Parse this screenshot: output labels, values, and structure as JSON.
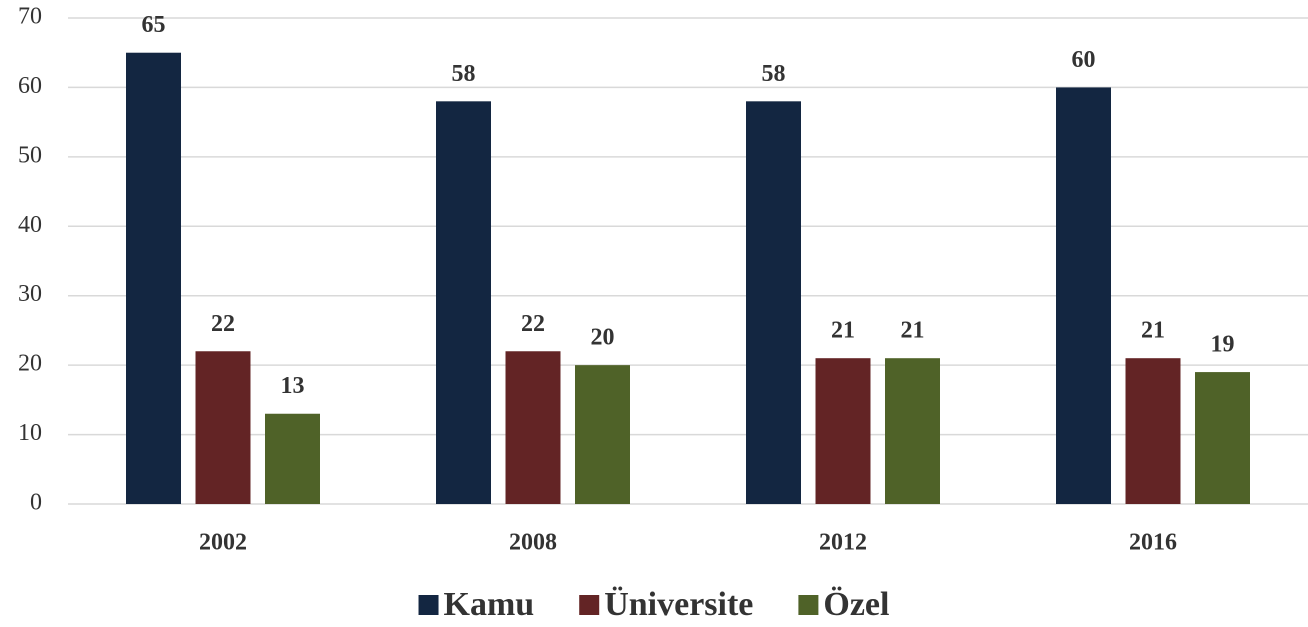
{
  "chart_data": {
    "type": "bar",
    "categories": [
      "2002",
      "2008",
      "2012",
      "2016"
    ],
    "series": [
      {
        "name": "Kamu",
        "color": "#132641",
        "values": [
          65,
          58,
          58,
          60
        ]
      },
      {
        "name": "Üniversite",
        "color": "#632425",
        "values": [
          22,
          22,
          21,
          21
        ]
      },
      {
        "name": "Özel",
        "color": "#4f6228",
        "values": [
          13,
          20,
          21,
          19
        ]
      }
    ],
    "ylim": [
      0,
      70
    ],
    "yticks": [
      0,
      10,
      20,
      30,
      40,
      50,
      60,
      70
    ],
    "grid": true,
    "legend": "bottom"
  }
}
